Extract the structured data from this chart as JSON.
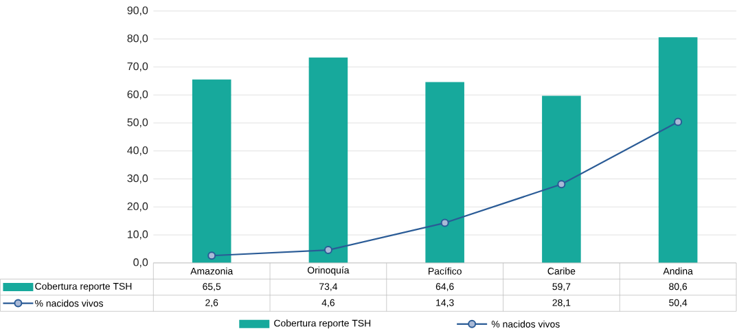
{
  "chart_data": {
    "type": "bar",
    "categories": [
      "Amazonia",
      "Orinoquía",
      "Pacífico",
      "Caribe",
      "Andina"
    ],
    "series": [
      {
        "name": "Cobertura reporte TSH",
        "color": "#17a99c",
        "values": [
          65.5,
          73.4,
          64.6,
          59.7,
          80.6
        ],
        "value_labels": [
          "65,5",
          "73,4",
          "64,6",
          "59,7",
          "80,6"
        ]
      },
      {
        "name": "% nacidos vivos",
        "type": "line",
        "color": "#2a5b96",
        "marker": "circle",
        "line_style": "solid",
        "values": [
          2.6,
          4.6,
          14.3,
          28.1,
          50.4
        ],
        "value_labels": [
          "2,6",
          "4,6",
          "14,3",
          "28,1",
          "50,4"
        ]
      }
    ],
    "ylim": [
      0,
      90
    ],
    "yticks": [
      {
        "value": 0,
        "label": "0,0"
      },
      {
        "value": 10,
        "label": "10,0"
      },
      {
        "value": 20,
        "label": "20,0"
      },
      {
        "value": 30,
        "label": "30,0"
      },
      {
        "value": 40,
        "label": "40,0"
      },
      {
        "value": 50,
        "label": "50,0"
      },
      {
        "value": 60,
        "label": "60,0"
      },
      {
        "value": 70,
        "label": "70,0"
      },
      {
        "value": 80,
        "label": "80,0"
      },
      {
        "value": 90,
        "label": "90,0"
      }
    ],
    "grid": "y",
    "legend": "bottom"
  }
}
